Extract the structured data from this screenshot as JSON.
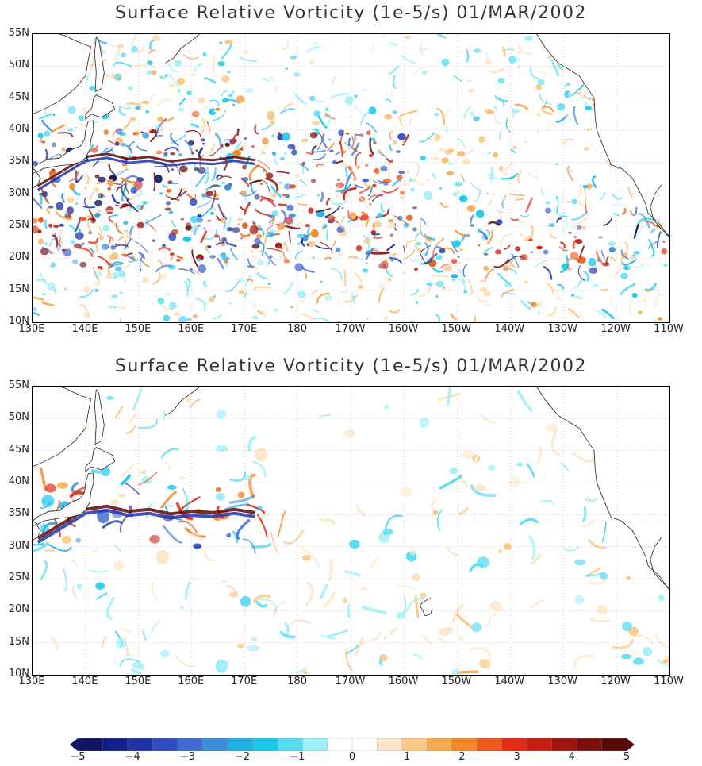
{
  "panels": [
    {
      "title": "Surface Relative Vorticity (1e-5/s)  01/MAR/2002",
      "resolution": "high",
      "lat_labels": [
        "55N",
        "50N",
        "45N",
        "40N",
        "35N",
        "30N",
        "25N",
        "20N",
        "15N",
        "10N"
      ],
      "lon_labels": [
        "130E",
        "140E",
        "150E",
        "160E",
        "170E",
        "180",
        "170W",
        "160W",
        "150W",
        "140W",
        "130W",
        "120W",
        "110W"
      ]
    },
    {
      "title": "Surface Relative Vorticity (1e-5/s)  01/MAR/2002",
      "resolution": "low",
      "lat_labels": [
        "55N",
        "50N",
        "45N",
        "40N",
        "35N",
        "30N",
        "25N",
        "20N",
        "15N",
        "10N"
      ],
      "lon_labels": [
        "130E",
        "140E",
        "150E",
        "160E",
        "170E",
        "180",
        "170W",
        "160W",
        "150W",
        "140W",
        "130W",
        "120W",
        "110W"
      ]
    }
  ],
  "colorbar": {
    "ticks": [
      "−5",
      "−4",
      "−3",
      "−2",
      "−1",
      "0",
      "1",
      "2",
      "3",
      "4",
      "5"
    ],
    "min": -5,
    "max": 5,
    "extend": "both",
    "colors": [
      "#0d1463",
      "#14208a",
      "#1f33a8",
      "#2f4cc0",
      "#3e6dd0",
      "#3a8fdc",
      "#20b0e6",
      "#1fc8ec",
      "#55dcf2",
      "#9ceef8",
      "#ffffff",
      "#ffffff",
      "#fde6c8",
      "#fcc987",
      "#f8a94d",
      "#f3872a",
      "#ee5a1c",
      "#e52b12",
      "#c81d12",
      "#a0150f",
      "#7d0f0c",
      "#5a0808"
    ]
  }
}
